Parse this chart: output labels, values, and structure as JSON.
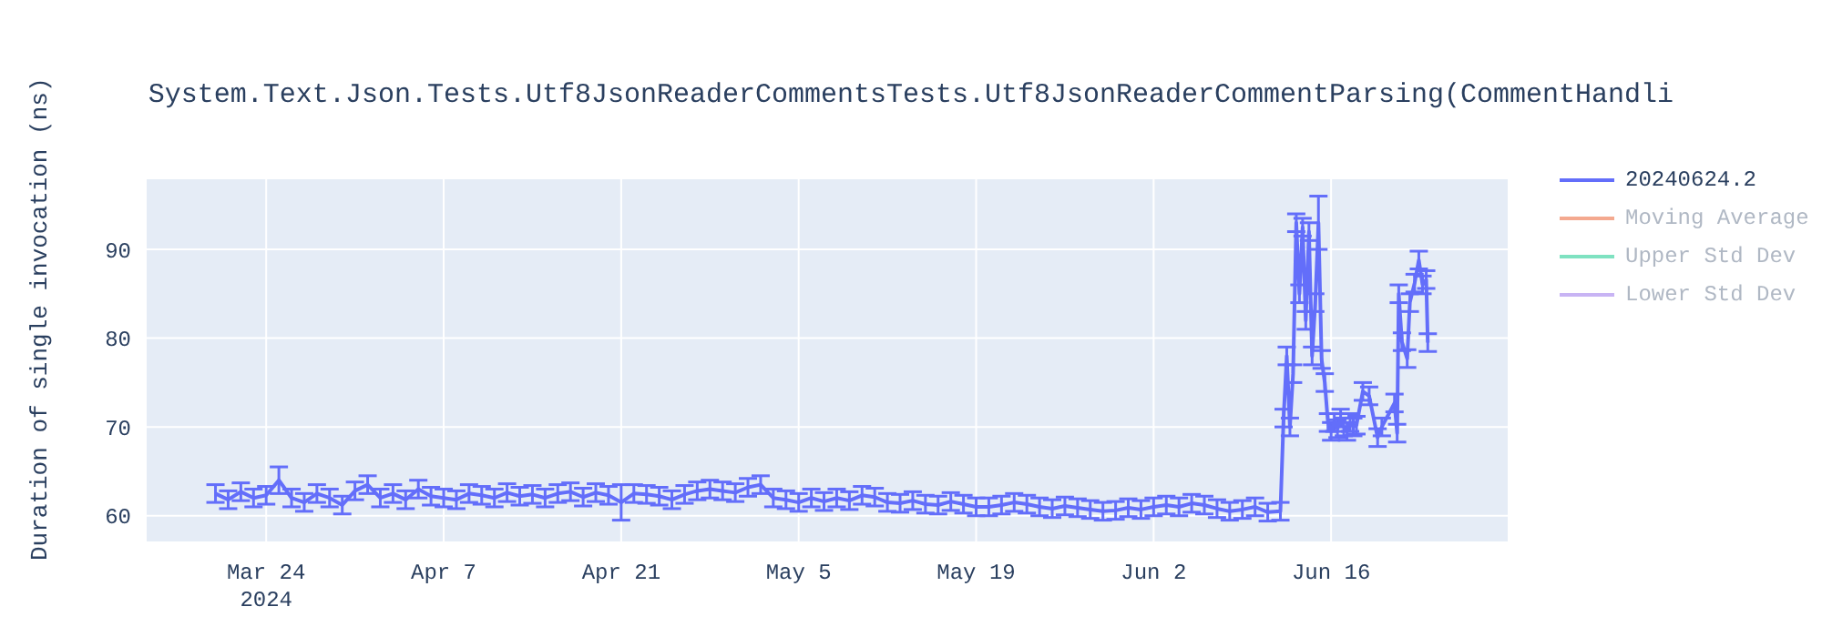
{
  "chart_data": {
    "type": "line",
    "title": "System.Text.Json.Tests.Utf8JsonReaderCommentsTests.Utf8JsonReaderCommentParsing(CommentHandli",
    "ylabel": "Duration of single invocation (ns)",
    "x": [
      "2024-03-20",
      "2024-03-21",
      "2024-03-22",
      "2024-03-23",
      "2024-03-24",
      "2024-03-25",
      "2024-03-26",
      "2024-03-27",
      "2024-03-28",
      "2024-03-29",
      "2024-03-30",
      "2024-03-31",
      "2024-04-01",
      "2024-04-02",
      "2024-04-03",
      "2024-04-04",
      "2024-04-05",
      "2024-04-06",
      "2024-04-07",
      "2024-04-08",
      "2024-04-09",
      "2024-04-10",
      "2024-04-11",
      "2024-04-12",
      "2024-04-13",
      "2024-04-14",
      "2024-04-15",
      "2024-04-16",
      "2024-04-17",
      "2024-04-18",
      "2024-04-19",
      "2024-04-20",
      "2024-04-21",
      "2024-04-22",
      "2024-04-23",
      "2024-04-24",
      "2024-04-25",
      "2024-04-26",
      "2024-04-27",
      "2024-04-28",
      "2024-04-29",
      "2024-04-30",
      "2024-05-01",
      "2024-05-02",
      "2024-05-03",
      "2024-05-04",
      "2024-05-05",
      "2024-05-06",
      "2024-05-07",
      "2024-05-08",
      "2024-05-09",
      "2024-05-10",
      "2024-05-11",
      "2024-05-12",
      "2024-05-13",
      "2024-05-14",
      "2024-05-15",
      "2024-05-16",
      "2024-05-17",
      "2024-05-18",
      "2024-05-19",
      "2024-05-20",
      "2024-05-21",
      "2024-05-22",
      "2024-05-23",
      "2024-05-24",
      "2024-05-25",
      "2024-05-26",
      "2024-05-27",
      "2024-05-28",
      "2024-05-29",
      "2024-05-30",
      "2024-05-31",
      "2024-06-01",
      "2024-06-02",
      "2024-06-03",
      "2024-06-04",
      "2024-06-05",
      "2024-06-06",
      "2024-06-07",
      "2024-06-08",
      "2024-06-09",
      "2024-06-10",
      "2024-06-11",
      "2024-06-12",
      "2024-06-12T06:00",
      "2024-06-12T12:00",
      "2024-06-12T18:00",
      "2024-06-13",
      "2024-06-13T06:00",
      "2024-06-13T12:00",
      "2024-06-13T18:00",
      "2024-06-14",
      "2024-06-14T06:00",
      "2024-06-14T12:00",
      "2024-06-14T18:00",
      "2024-06-15",
      "2024-06-15T06:00",
      "2024-06-15T12:00",
      "2024-06-15T18:00",
      "2024-06-16",
      "2024-06-16T06:00",
      "2024-06-16T12:00",
      "2024-06-16T18:00",
      "2024-06-17",
      "2024-06-17T06:00",
      "2024-06-17T12:00",
      "2024-06-17T18:00",
      "2024-06-18",
      "2024-06-18T12:00",
      "2024-06-19",
      "2024-06-19T16:00",
      "2024-06-20",
      "2024-06-21",
      "2024-06-21T05:00",
      "2024-06-21T08:00",
      "2024-06-21T14:00",
      "2024-06-22",
      "2024-06-22T05:00",
      "2024-06-22T14:00",
      "2024-06-22T22:00",
      "2024-06-23T05:00",
      "2024-06-23T12:00",
      "2024-06-23T15:00"
    ],
    "series": [
      {
        "name": "20240624.2",
        "color": "#636efa",
        "values": [
          62.5,
          61.8,
          62.7,
          62,
          62.3,
          64,
          62,
          61.5,
          62.5,
          62,
          61.2,
          62.8,
          63.5,
          62,
          62.5,
          61.8,
          63,
          62.2,
          62,
          61.8,
          62.5,
          62.3,
          62,
          62.6,
          62.2,
          62.4,
          62,
          62.5,
          62.7,
          62.1,
          62.6,
          62.3,
          61.5,
          62.5,
          62.4,
          62.2,
          61.8,
          62.4,
          62.8,
          63,
          62.8,
          62.6,
          63.2,
          63.5,
          62,
          61.8,
          61.5,
          62,
          61.6,
          62,
          61.7,
          62.3,
          62.1,
          61.5,
          61.4,
          61.7,
          61.3,
          61.2,
          61.6,
          61.3,
          61,
          61,
          61.2,
          61.5,
          61.3,
          61,
          60.8,
          61.1,
          60.9,
          60.7,
          60.5,
          60.6,
          60.9,
          60.7,
          61,
          61.2,
          61,
          61.4,
          61.2,
          60.8,
          60.5,
          60.7,
          61,
          60.4,
          60.5,
          71,
          78,
          70,
          76,
          93,
          85,
          92.5,
          82,
          92,
          78,
          84,
          93,
          77.6,
          75,
          70.5,
          69.5,
          70.5,
          69.8,
          71,
          70,
          69.5,
          70.5,
          70,
          70.2,
          74,
          73.5,
          68.8,
          70,
          72.7,
          69.3,
          85,
          79.6,
          77.7,
          84,
          86.2,
          88.8,
          86,
          86.6,
          79.5
        ],
        "errors": [
          1,
          1,
          1,
          1,
          1,
          1.5,
          1,
          1,
          1,
          1,
          1,
          1,
          1,
          1,
          1,
          1,
          1,
          1,
          1,
          1,
          1,
          1,
          1,
          1,
          1,
          1,
          1,
          1,
          1,
          1,
          1,
          1,
          2,
          1,
          1,
          1,
          1,
          1,
          1,
          1,
          1,
          1,
          1,
          1,
          1,
          1,
          1,
          1,
          1,
          1,
          1,
          1,
          1,
          1,
          1,
          1,
          1,
          1,
          1,
          1,
          1,
          1,
          1,
          1,
          1,
          1,
          1,
          1,
          1,
          1,
          1,
          1,
          1,
          1,
          1,
          1,
          1,
          1,
          1,
          1,
          1,
          1,
          1,
          1,
          1,
          1,
          1,
          1,
          1,
          1,
          1,
          1,
          1,
          1,
          1,
          1,
          3,
          1,
          1,
          1,
          1,
          1,
          1,
          1,
          1,
          1,
          1,
          1,
          1,
          1,
          1,
          1,
          1,
          1,
          1,
          1,
          1,
          1,
          1,
          1,
          1,
          1,
          1,
          1
        ]
      },
      {
        "name": "Moving Average",
        "color": "#f4a98f",
        "values": [
          null,
          null,
          null,
          null,
          null,
          null,
          null,
          null,
          null,
          null,
          null,
          null,
          null,
          null,
          null,
          null,
          null,
          null,
          null,
          null,
          null,
          null,
          null,
          null,
          null,
          null,
          null,
          null,
          null,
          null,
          null,
          null,
          null,
          null,
          null,
          null,
          null,
          null,
          null,
          null,
          null,
          null,
          null,
          null,
          null,
          null,
          null,
          null,
          null,
          null,
          null,
          null,
          null,
          null,
          null,
          null,
          null,
          null,
          null,
          null,
          null,
          null,
          null,
          null,
          null,
          null,
          null,
          null,
          null,
          null,
          null,
          null,
          null,
          null,
          null,
          null,
          null,
          null,
          null,
          null,
          null,
          null,
          null,
          null,
          null,
          null,
          null,
          null,
          null,
          null,
          null,
          null,
          null,
          null,
          null,
          null,
          null,
          null,
          null,
          null,
          null,
          null,
          null,
          null,
          null,
          null,
          null,
          null,
          null,
          null,
          null,
          null,
          null,
          null,
          null,
          null,
          null,
          null,
          null,
          null,
          null,
          null,
          null,
          null
        ]
      },
      {
        "name": "Upper Std Dev",
        "color": "#7fe2c1",
        "values": [
          null,
          null,
          null,
          null,
          null,
          null,
          null,
          null,
          null,
          null,
          null,
          null,
          null,
          null,
          null,
          null,
          null,
          null,
          null,
          null,
          null,
          null,
          null,
          null,
          null,
          null,
          null,
          null,
          null,
          null,
          null,
          null,
          null,
          null,
          null,
          null,
          null,
          null,
          null,
          null,
          null,
          null,
          null,
          null,
          null,
          null,
          null,
          null,
          null,
          null,
          null,
          null,
          null,
          null,
          null,
          null,
          null,
          null,
          null,
          null,
          null,
          null,
          null,
          null,
          null,
          null,
          null,
          null,
          null,
          null,
          null,
          null,
          null,
          null,
          null,
          null,
          null,
          null,
          null,
          null,
          null,
          null,
          null,
          null,
          null,
          null,
          null,
          null,
          null,
          null,
          null,
          null,
          null,
          null,
          null,
          null,
          null,
          null,
          null,
          null,
          null,
          null,
          null,
          null,
          null,
          null,
          null,
          null,
          null,
          null,
          null,
          null,
          null,
          null,
          null,
          null,
          null,
          null,
          null,
          null,
          null,
          null,
          null,
          null
        ]
      },
      {
        "name": "Lower Std Dev",
        "color": "#c8b4f4",
        "values": [
          null,
          null,
          null,
          null,
          null,
          null,
          null,
          null,
          null,
          null,
          null,
          null,
          null,
          null,
          null,
          null,
          null,
          null,
          null,
          null,
          null,
          null,
          null,
          null,
          null,
          null,
          null,
          null,
          null,
          null,
          null,
          null,
          null,
          null,
          null,
          null,
          null,
          null,
          null,
          null,
          null,
          null,
          null,
          null,
          null,
          null,
          null,
          null,
          null,
          null,
          null,
          null,
          null,
          null,
          null,
          null,
          null,
          null,
          null,
          null,
          null,
          null,
          null,
          null,
          null,
          null,
          null,
          null,
          null,
          null,
          null,
          null,
          null,
          null,
          null,
          null,
          null,
          null,
          null,
          null,
          null,
          null,
          null,
          null,
          null,
          null,
          null,
          null,
          null,
          null,
          null,
          null,
          null,
          null,
          null,
          null,
          null,
          null,
          null,
          null,
          null,
          null,
          null,
          null,
          null,
          null,
          null,
          null,
          null,
          null,
          null,
          null,
          null,
          null,
          null,
          null,
          null,
          null,
          null,
          null,
          null,
          null,
          null,
          null
        ]
      }
    ],
    "xlim": [
      "2024-03-14T12:00",
      "2024-06-30"
    ],
    "xticks": [
      {
        "value": "2024-03-24",
        "label": "Mar 24\n2024"
      },
      {
        "value": "2024-04-07",
        "label": "Apr 7"
      },
      {
        "value": "2024-04-21",
        "label": "Apr 21"
      },
      {
        "value": "2024-05-05",
        "label": "May 5"
      },
      {
        "value": "2024-05-19",
        "label": "May 19"
      },
      {
        "value": "2024-06-02",
        "label": "Jun 2"
      },
      {
        "value": "2024-06-16",
        "label": "Jun 16"
      }
    ],
    "ylim": [
      57,
      98
    ],
    "yticks": [
      60,
      70,
      80,
      90
    ],
    "grid": true,
    "legend": "top right",
    "marker": "none",
    "line_style": "solid"
  }
}
